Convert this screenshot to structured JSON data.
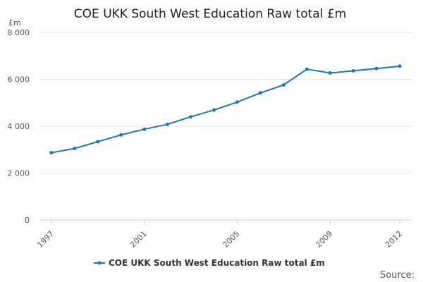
{
  "chart_data": {
    "type": "line",
    "title": "COE UKK South West Education Raw total £m",
    "unit_label": "£m",
    "x": [
      1997,
      1998,
      1999,
      2000,
      2001,
      2002,
      2003,
      2004,
      2005,
      2006,
      2007,
      2008,
      2009,
      2010,
      2011,
      2012
    ],
    "series": [
      {
        "name": "COE UKK South West Education Raw total £m",
        "color": "#1f77b4",
        "values": [
          2870,
          3050,
          3340,
          3630,
          3870,
          4080,
          4400,
          4690,
          5030,
          5420,
          5760,
          6430,
          6270,
          6360,
          6460,
          6560
        ]
      }
    ],
    "ylim": [
      0,
      8000
    ],
    "yticks": [
      0,
      2000,
      4000,
      6000,
      8000
    ],
    "ytick_labels": [
      "0",
      "2 000",
      "4 000",
      "6 000",
      "8 000"
    ],
    "xticks": [
      1997,
      2001,
      2005,
      2009,
      2012
    ],
    "xtick_labels": [
      "1997",
      "2001",
      "2005",
      "2009",
      "2012"
    ],
    "grid": true,
    "legend_position": "bottom"
  },
  "footer": {
    "source_label": "Source:"
  }
}
